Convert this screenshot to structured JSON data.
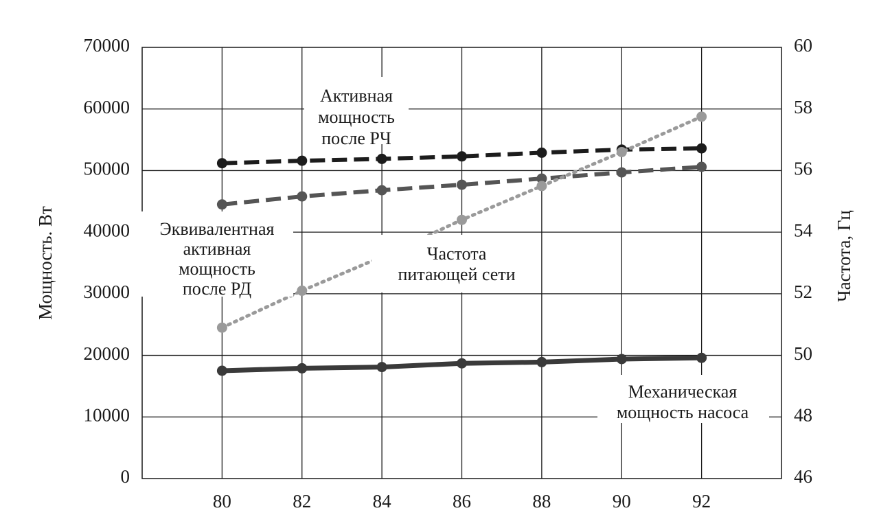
{
  "chart_data": {
    "type": "line",
    "x": [
      80,
      82,
      84,
      86,
      88,
      90,
      92
    ],
    "xlim": [
      78,
      94
    ],
    "x_ticks": [
      80,
      82,
      84,
      86,
      88,
      90,
      92
    ],
    "ylabel": "Мощность. Вт",
    "ylim": [
      0,
      70000
    ],
    "y_ticks": [
      0,
      10000,
      20000,
      30000,
      40000,
      50000,
      60000,
      70000
    ],
    "y2label": "Частота, Гц",
    "y2lim": [
      46,
      60
    ],
    "y2_ticks": [
      46,
      48,
      50,
      52,
      54,
      56,
      58,
      60
    ],
    "grid": true,
    "series": [
      {
        "name": "Активная мощность после РЧ",
        "axis": "left",
        "style": "dashed",
        "color": "#1c1c1c",
        "values": [
          51200,
          51600,
          51900,
          52300,
          52900,
          53400,
          53600
        ]
      },
      {
        "name": "Эквивалентная активная мощность после РД",
        "axis": "left",
        "style": "dashed",
        "color": "#555555",
        "values": [
          44500,
          45800,
          46800,
          47700,
          48700,
          49700,
          50600
        ]
      },
      {
        "name": "Частота питающей сети",
        "axis": "right",
        "style": "dotted",
        "color": "#9a9a9a",
        "values": [
          50.9,
          52.1,
          53.2,
          54.4,
          55.5,
          56.6,
          57.75
        ]
      },
      {
        "name": "Механическая мощность насоса",
        "axis": "left",
        "style": "solid",
        "color": "#3a3a3a",
        "values": [
          17500,
          17900,
          18100,
          18700,
          18900,
          19400,
          19600
        ]
      }
    ],
    "annotations": {
      "active_rch": [
        "Активная",
        "мощность",
        "после РЧ"
      ],
      "equiv_rd": [
        "Эквивалентная",
        "активная",
        "мощность",
        "после РД"
      ],
      "frequency": [
        "Частота",
        "питающей сети"
      ],
      "mechanical": [
        "Механическая",
        "мощность насоса"
      ]
    }
  }
}
